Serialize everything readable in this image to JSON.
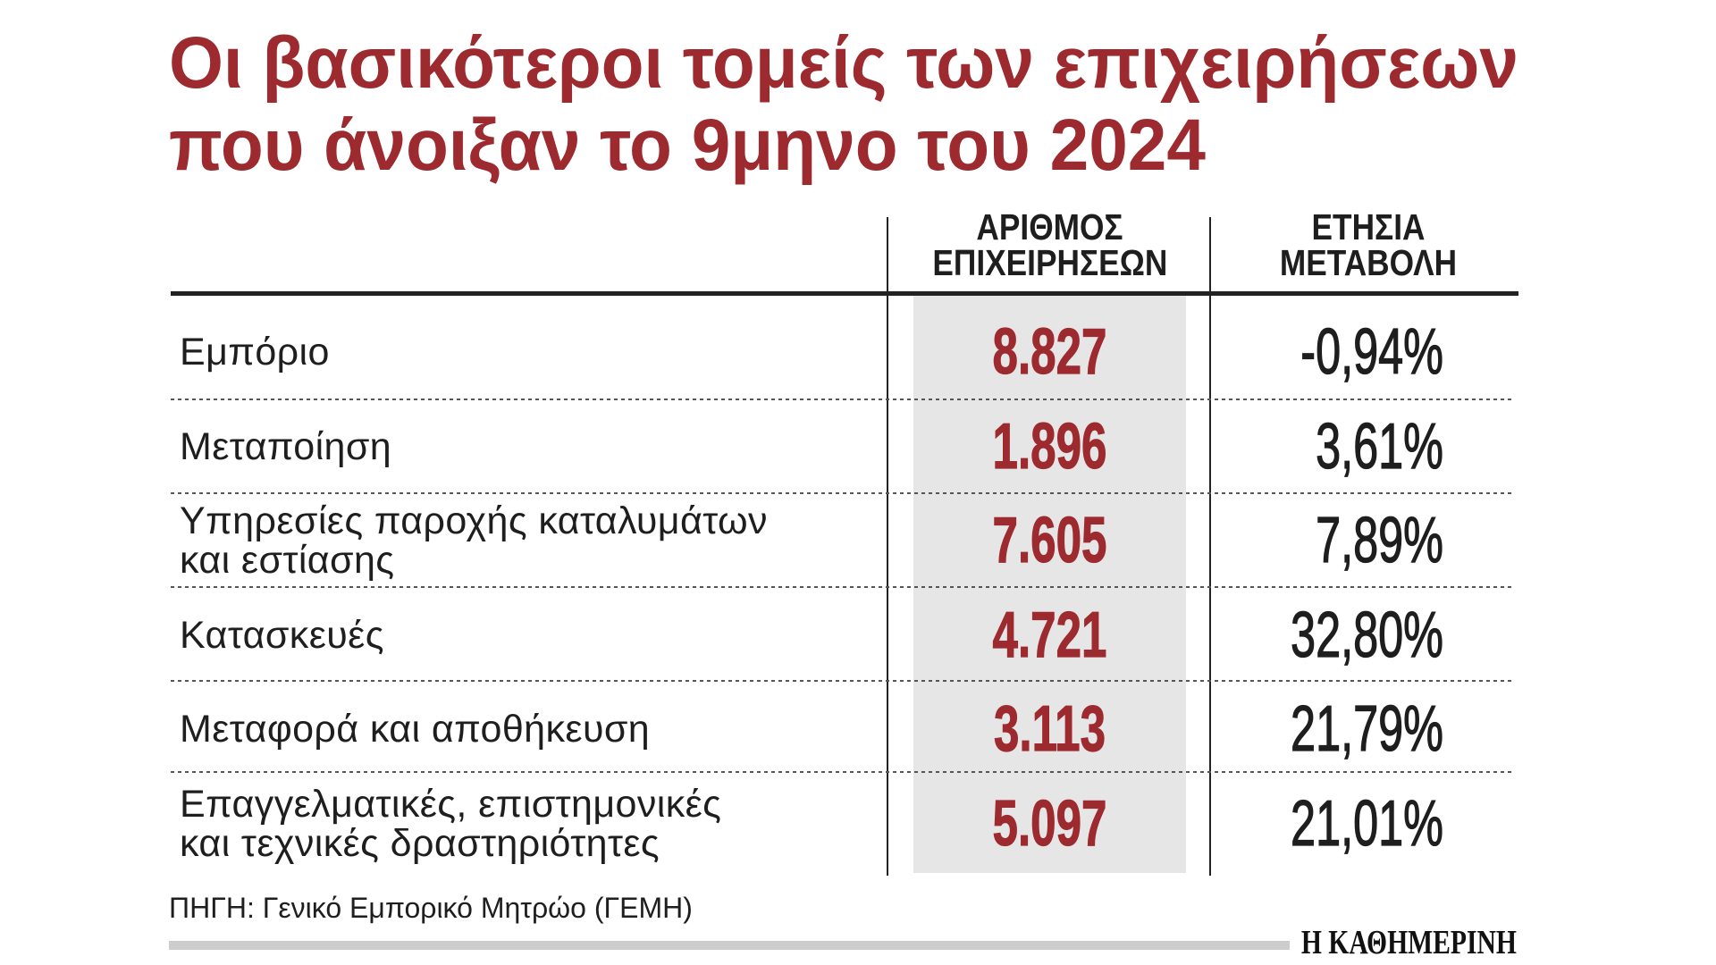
{
  "chart_data": {
    "type": "table",
    "title_lines": [
      "Οι βασικότεροι τομείς των επιχειρήσεων",
      "που άνοιξαν το 9μηνο του 2024"
    ],
    "columns": [
      {
        "header_lines": [
          "ΑΡΙΘΜΟΣ",
          "ΕΠΙΧΕΙΡΗΣΕΩΝ"
        ]
      },
      {
        "header_lines": [
          "ΕΤΗΣΙΑ",
          "ΜΕΤΑΒΟΛΗ"
        ]
      }
    ],
    "rows": [
      {
        "label_lines": [
          "Εμπόριο"
        ],
        "values": [
          "8.827",
          "-0,94%"
        ]
      },
      {
        "label_lines": [
          "Μεταποίηση"
        ],
        "values": [
          "1.896",
          "3,61%"
        ]
      },
      {
        "label_lines": [
          "Υπηρεσίες παροχής καταλυμάτων",
          "και εστίασης"
        ],
        "values": [
          "7.605",
          "7,89%"
        ]
      },
      {
        "label_lines": [
          "Κατασκευές"
        ],
        "values": [
          "4.721",
          "32,80%"
        ]
      },
      {
        "label_lines": [
          "Μεταφορά και αποθήκευση"
        ],
        "values": [
          "3.113",
          "21,79%"
        ]
      },
      {
        "label_lines": [
          "Επαγγελματικές, επιστημονικές",
          "και τεχνικές δραστηριότητες"
        ],
        "values": [
          "5.097",
          "21,01%"
        ]
      }
    ],
    "source": "ΠΗΓΗ: Γενικό Εμπορικό Μητρώο (ΓΕΜΗ)"
  },
  "branding": {
    "logo": "Η ΚΑΘΗΜΕΡΙΝΗ"
  },
  "colors": {
    "title": "#9c2a2f",
    "figures": "#9c2a2f",
    "highlight": "#e6e6e6",
    "text": "#1e1e1e",
    "rule": "#222222",
    "dots": "#555555",
    "footer_bar": "#cccccc",
    "logo": "#111111"
  }
}
